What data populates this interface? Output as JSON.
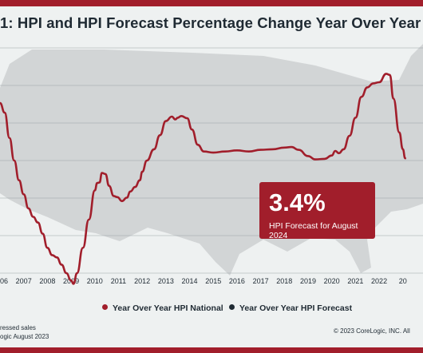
{
  "title": "1: HPI and HPI Forecast Percentage Change Year Over Year",
  "callout": {
    "value": "3.4%",
    "label": "HPI Forecast for August 2024",
    "color": "#a11e2b"
  },
  "legend": [
    {
      "label": "Year Over Year HPI National",
      "color": "#a11e2b"
    },
    {
      "label": "Year Over Year HPI Forecast",
      "color": "#1f2a33"
    }
  ],
  "footer": {
    "note_line1": "ressed sales",
    "note_line2": "ogic August 2023",
    "copyright": "© 2023 CoreLogic, INC. All"
  },
  "chart_data": {
    "type": "line",
    "x_tick_labels": [
      "06",
      "2007",
      "2008",
      "2009",
      "2010",
      "2011",
      "2012",
      "2013",
      "2014",
      "2015",
      "2016",
      "2017",
      "2018",
      "2019",
      "2020",
      "2021",
      "2022",
      "20"
    ],
    "xlim": [
      2006.0,
      2023.85
    ],
    "ylim": [
      -15,
      25
    ],
    "grid": true,
    "series": [
      {
        "name": "Year Over Year HPI National",
        "color": "#a11e2b",
        "points": [
          [
            2006.0,
            15.2
          ],
          [
            2006.2,
            13.5
          ],
          [
            2006.4,
            9.0
          ],
          [
            2006.6,
            5.0
          ],
          [
            2006.8,
            1.5
          ],
          [
            2007.0,
            -1.0
          ],
          [
            2007.2,
            -3.5
          ],
          [
            2007.4,
            -5.0
          ],
          [
            2007.6,
            -6.0
          ],
          [
            2007.8,
            -8.0
          ],
          [
            2008.0,
            -10.5
          ],
          [
            2008.2,
            -11.8
          ],
          [
            2008.4,
            -12.2
          ],
          [
            2008.6,
            -13.5
          ],
          [
            2008.8,
            -15.0
          ],
          [
            2009.0,
            -16.3
          ],
          [
            2009.1,
            -16.9
          ],
          [
            2009.25,
            -15.0
          ],
          [
            2009.5,
            -10.5
          ],
          [
            2009.75,
            -5.5
          ],
          [
            2010.0,
            -0.3
          ],
          [
            2010.1,
            1.0
          ],
          [
            2010.2,
            1.1
          ],
          [
            2010.3,
            2.8
          ],
          [
            2010.45,
            2.6
          ],
          [
            2010.6,
            0.5
          ],
          [
            2010.8,
            -1.3
          ],
          [
            2010.95,
            -1.5
          ],
          [
            2011.15,
            -2.2
          ],
          [
            2011.35,
            -1.6
          ],
          [
            2011.5,
            -0.5
          ],
          [
            2011.7,
            0.3
          ],
          [
            2011.9,
            1.5
          ],
          [
            2012.0,
            3.0
          ],
          [
            2012.2,
            5.0
          ],
          [
            2012.5,
            7.0
          ],
          [
            2012.75,
            9.5
          ],
          [
            2013.0,
            12.0
          ],
          [
            2013.25,
            12.8
          ],
          [
            2013.4,
            12.3
          ],
          [
            2013.5,
            12.6
          ],
          [
            2013.65,
            12.9
          ],
          [
            2013.9,
            12.5
          ],
          [
            2014.1,
            10.5
          ],
          [
            2014.35,
            7.8
          ],
          [
            2014.6,
            6.6
          ],
          [
            2015.0,
            6.4
          ],
          [
            2015.5,
            6.6
          ],
          [
            2016.0,
            6.8
          ],
          [
            2016.5,
            6.6
          ],
          [
            2017.0,
            6.9
          ],
          [
            2017.5,
            7.0
          ],
          [
            2018.0,
            7.3
          ],
          [
            2018.3,
            7.4
          ],
          [
            2018.6,
            6.9
          ],
          [
            2019.0,
            5.8
          ],
          [
            2019.3,
            5.2
          ],
          [
            2019.7,
            5.3
          ],
          [
            2020.0,
            5.9
          ],
          [
            2020.15,
            6.7
          ],
          [
            2020.3,
            6.3
          ],
          [
            2020.5,
            7.0
          ],
          [
            2020.75,
            9.4
          ],
          [
            2021.0,
            12.6
          ],
          [
            2021.25,
            16.3
          ],
          [
            2021.5,
            18.0
          ],
          [
            2021.75,
            18.7
          ],
          [
            2022.0,
            18.9
          ],
          [
            2022.3,
            20.4
          ],
          [
            2022.45,
            20.2
          ],
          [
            2022.6,
            16.0
          ],
          [
            2022.85,
            10.0
          ],
          [
            2023.0,
            7.0
          ],
          [
            2023.1,
            5.4
          ]
        ]
      },
      {
        "name": "Year Over Year HPI Forecast",
        "color": "#1f2a33",
        "points": []
      }
    ]
  }
}
